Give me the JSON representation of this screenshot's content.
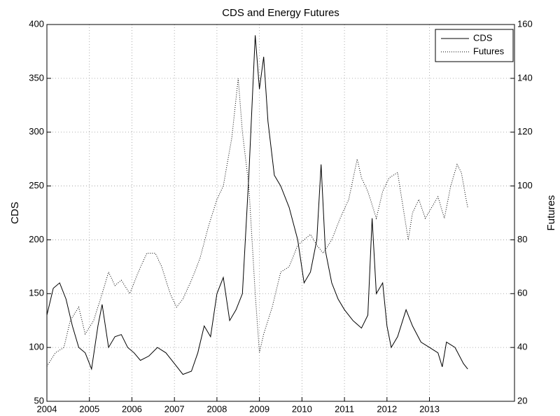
{
  "chart_data": {
    "type": "line",
    "title": "CDS and Energy Futures",
    "ylabel": "CDS",
    "y2label": "Futures",
    "xlim": [
      2004,
      2015
    ],
    "xticks": [
      2004,
      2005,
      2006,
      2007,
      2008,
      2009,
      2010,
      2011,
      2012,
      2013
    ],
    "ylim": [
      50,
      400
    ],
    "yticks": [
      50,
      100,
      150,
      200,
      250,
      300,
      350,
      400
    ],
    "y2lim": [
      20,
      160
    ],
    "y2ticks": [
      20,
      40,
      60,
      80,
      100,
      120,
      140,
      160
    ],
    "grid": true,
    "legend": "northeast",
    "series": [
      {
        "name": "CDS",
        "color": "#000000",
        "style": "solid",
        "x": [
          2004.0,
          2004.15,
          2004.3,
          2004.45,
          2004.6,
          2004.75,
          2004.9,
          2005.05,
          2005.2,
          2005.3,
          2005.45,
          2005.6,
          2005.75,
          2005.9,
          2006.05,
          2006.2,
          2006.4,
          2006.6,
          2006.8,
          2007.0,
          2007.2,
          2007.4,
          2007.55,
          2007.7,
          2007.85,
          2008.0,
          2008.15,
          2008.3,
          2008.45,
          2008.6,
          2008.75,
          2008.9,
          2009.0,
          2009.1,
          2009.2,
          2009.35,
          2009.5,
          2009.7,
          2009.9,
          2010.05,
          2010.2,
          2010.35,
          2010.45,
          2010.55,
          2010.7,
          2010.85,
          2011.0,
          2011.2,
          2011.4,
          2011.55,
          2011.65,
          2011.75,
          2011.9,
          2012.0,
          2012.1,
          2012.25,
          2012.45,
          2012.6,
          2012.8,
          2013.0,
          2013.2,
          2013.3,
          2013.4,
          2013.6,
          2013.8,
          2013.9
        ],
        "values": [
          130,
          155,
          160,
          145,
          120,
          100,
          95,
          80,
          120,
          140,
          100,
          110,
          112,
          100,
          95,
          88,
          92,
          100,
          95,
          85,
          75,
          78,
          95,
          120,
          110,
          150,
          165,
          125,
          135,
          150,
          260,
          390,
          340,
          370,
          310,
          260,
          250,
          230,
          200,
          160,
          170,
          200,
          270,
          190,
          160,
          145,
          135,
          125,
          118,
          130,
          220,
          150,
          160,
          120,
          100,
          110,
          135,
          120,
          105,
          100,
          95,
          82,
          105,
          100,
          85,
          80
        ]
      },
      {
        "name": "Futures",
        "color": "#000000",
        "style": "dotted",
        "axis": "y2",
        "x": [
          2004.0,
          2004.2,
          2004.4,
          2004.55,
          2004.75,
          2004.9,
          2005.1,
          2005.3,
          2005.45,
          2005.6,
          2005.75,
          2005.95,
          2006.15,
          2006.35,
          2006.55,
          2006.7,
          2006.9,
          2007.05,
          2007.2,
          2007.4,
          2007.6,
          2007.8,
          2008.0,
          2008.15,
          2008.35,
          2008.5,
          2008.6,
          2008.75,
          2008.9,
          2009.0,
          2009.1,
          2009.3,
          2009.5,
          2009.7,
          2009.9,
          2010.05,
          2010.2,
          2010.35,
          2010.5,
          2010.7,
          2010.9,
          2011.1,
          2011.3,
          2011.4,
          2011.55,
          2011.75,
          2011.9,
          2012.05,
          2012.25,
          2012.4,
          2012.5,
          2012.6,
          2012.75,
          2012.9,
          2013.05,
          2013.2,
          2013.35,
          2013.5,
          2013.65,
          2013.75,
          2013.85,
          2013.9
        ],
        "values": [
          33,
          38,
          40,
          50,
          55,
          45,
          50,
          60,
          68,
          63,
          65,
          60,
          68,
          75,
          75,
          70,
          60,
          55,
          58,
          65,
          73,
          85,
          95,
          100,
          118,
          140,
          120,
          100,
          60,
          38,
          45,
          55,
          68,
          70,
          78,
          80,
          82,
          78,
          75,
          80,
          88,
          95,
          110,
          103,
          98,
          88,
          98,
          103,
          105,
          90,
          80,
          90,
          95,
          88,
          92,
          96,
          88,
          100,
          108,
          105,
          96,
          92
        ]
      }
    ]
  }
}
